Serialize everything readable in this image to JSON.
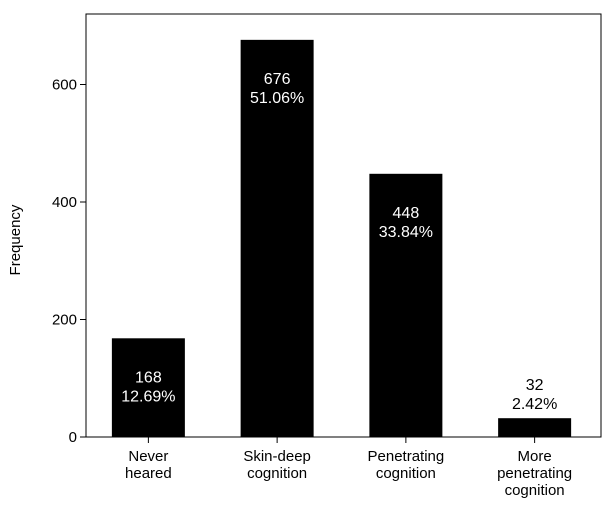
{
  "chart_data": {
    "type": "bar",
    "title": "",
    "xlabel": "",
    "ylabel": "Frequency",
    "ylim": [
      0,
      720
    ],
    "yticks": [
      0,
      200,
      400,
      600
    ],
    "grid": false,
    "bar_color": "#000000",
    "categories": [
      [
        "Never",
        "heared"
      ],
      [
        "Skin-deep",
        "cognition"
      ],
      [
        "Penetrating",
        "cognition"
      ],
      [
        "More",
        "penetrating",
        "cognition"
      ]
    ],
    "values": [
      168,
      676,
      448,
      32
    ],
    "percent_labels": [
      "12.69%",
      "51.06%",
      "33.84%",
      "2.42%"
    ]
  }
}
